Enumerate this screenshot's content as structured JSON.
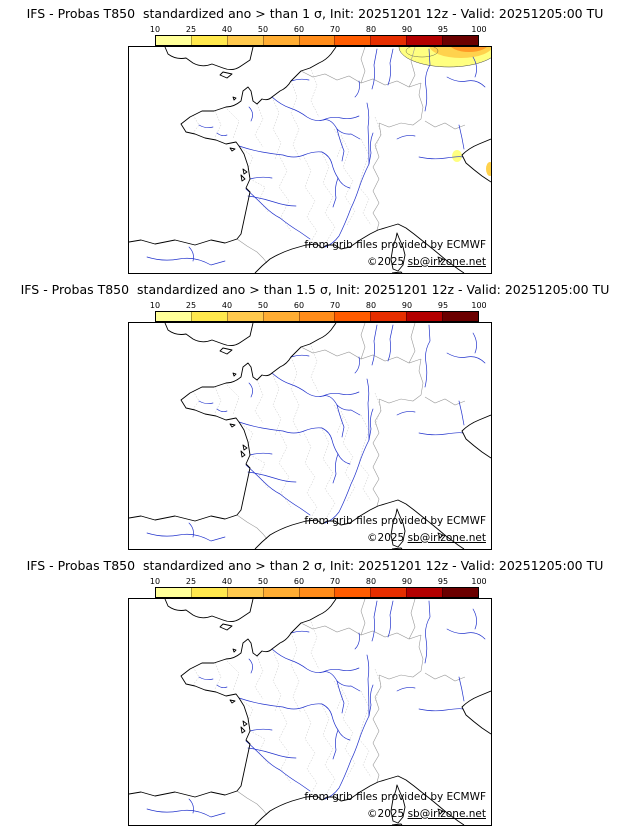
{
  "page": {
    "background": "#ffffff"
  },
  "panels": [
    {
      "id": "sigma-1",
      "sigma": "1",
      "title": "IFS - Probas T850  standardized ano > than 1 σ, Init: 20251201 12z - Valid: 20251205:00 TU"
    },
    {
      "id": "sigma-1.5",
      "sigma": "1.5",
      "title": "IFS - Probas T850  standardized ano > than 1.5 σ, Init: 20251201 12z - Valid: 20251205:00 TU"
    },
    {
      "id": "sigma-2",
      "sigma": "2",
      "title": "IFS - Probas T850  standardized ano > than 2 σ, Init: 20251201 12z - Valid: 20251205:00 TU"
    }
  ],
  "colorbar": {
    "ticks": [
      "10",
      "25",
      "40",
      "50",
      "60",
      "70",
      "80",
      "90",
      "95",
      "100"
    ],
    "colors": [
      "#ffff99",
      "#ffe84d",
      "#ffc94d",
      "#ffad33",
      "#ff8c1a",
      "#ff5c00",
      "#e62e00",
      "#b30000",
      "#6b0000"
    ]
  },
  "map": {
    "credit": "from grib files provided by ECMWF",
    "copyright_prefix": "©2025 ",
    "copyright_link": "sb@irizone.net",
    "coast_color": "#000000",
    "river_color": "#2233cc",
    "border_color": "#9a9a9a",
    "department_color": "#c4c4c4"
  },
  "anomaly": {
    "shown_on_panel": "sigma-1",
    "colors": [
      "#ffff80",
      "#ffd24d",
      "#ff9a26",
      "#e63900"
    ],
    "contour_color": "#444444"
  }
}
